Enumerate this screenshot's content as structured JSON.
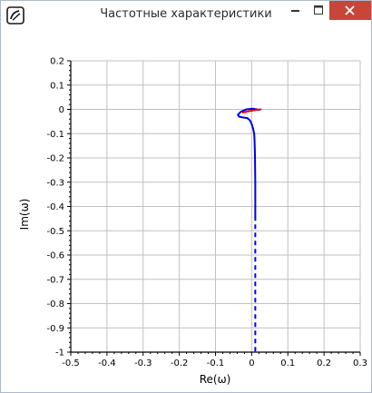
{
  "window": {
    "title": "Частотные характеристики"
  },
  "icons": {
    "app": "app-logo-icon",
    "minimize": "minimize-icon",
    "maximize": "maximize-icon",
    "close": "close-icon"
  },
  "colors": {
    "curve_main": "#0000e6",
    "curve_start": "#e60000",
    "close_button": "#c8453a",
    "grid": "#c0c0c0"
  },
  "chart_data": {
    "type": "line",
    "xlabel": "Re(ω)",
    "ylabel": "Im(ω)",
    "xlim": [
      -0.5,
      0.3
    ],
    "ylim": [
      -1,
      0.2
    ],
    "grid": true,
    "x_ticks": [
      "-0.5",
      "-0.4",
      "-0.3",
      "-0.2",
      "-0.1",
      "0",
      "0.1",
      "0.2",
      "0.3"
    ],
    "y_ticks": [
      "0.2",
      "0.1",
      "0",
      "-0.1",
      "-0.2",
      "-0.3",
      "-0.4",
      "-0.5",
      "-0.6",
      "-0.7",
      "-0.8",
      "-0.9",
      "-1"
    ],
    "series": [
      {
        "style": "solid",
        "color": "#0000e6",
        "points": [
          [
            0.02,
            -0.002
          ],
          [
            0.003,
            0.003
          ],
          [
            -0.015,
            0.0
          ],
          [
            -0.03,
            -0.01
          ],
          [
            -0.038,
            -0.022
          ],
          [
            -0.035,
            -0.03
          ],
          [
            -0.025,
            -0.033
          ],
          [
            -0.012,
            -0.036
          ],
          [
            -0.005,
            -0.045
          ],
          [
            0.0,
            -0.06
          ],
          [
            0.004,
            -0.08
          ],
          [
            0.007,
            -0.1
          ],
          [
            0.008,
            -0.13
          ],
          [
            0.009,
            -0.18
          ],
          [
            0.01,
            -0.3
          ],
          [
            0.01,
            -0.42
          ],
          [
            0.01,
            -0.44
          ]
        ]
      },
      {
        "style": "dashed",
        "color": "#0000e6",
        "points": [
          [
            0.01,
            -0.44
          ],
          [
            0.01,
            -1.0
          ]
        ]
      },
      {
        "style": "solid",
        "color": "#e60000",
        "points": [
          [
            0.025,
            0.0
          ],
          [
            0.005,
            -0.004
          ],
          [
            -0.012,
            -0.009
          ],
          [
            -0.024,
            -0.013
          ]
        ]
      }
    ]
  }
}
